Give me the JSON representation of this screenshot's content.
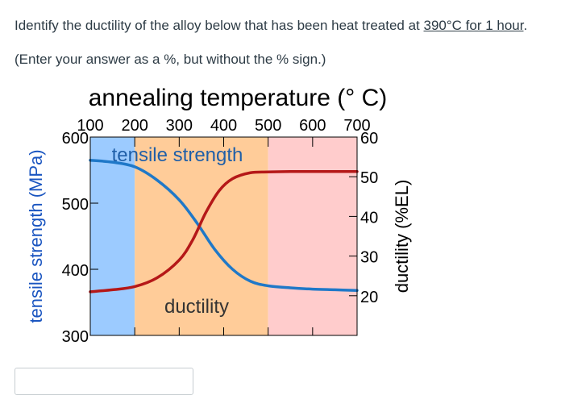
{
  "question": {
    "prefix": "Identify the ductility of the alloy below that has been heat treated at ",
    "link1": "390°C for 1 hour",
    "suffix": ".",
    "hint": "(Enter your answer as a %, but without the % sign.)"
  },
  "answer": {
    "value": "",
    "placeholder": ""
  },
  "chart_data": {
    "type": "line",
    "title": "annealing temperature (° C)",
    "x_ticks": [
      100,
      200,
      300,
      400,
      500,
      600,
      700
    ],
    "xlim": [
      100,
      700
    ],
    "ylabel_left": "tensile strength (MPa)",
    "yticks_left": [
      300,
      400,
      500,
      600
    ],
    "ylim_left": [
      300,
      600
    ],
    "ylabel_right": "ductility (%EL)",
    "yticks_right": [
      20,
      30,
      40,
      50,
      60
    ],
    "ylim_right": [
      10,
      60
    ],
    "regions": [
      {
        "from": 100,
        "to": 200,
        "color": "#9ccbff"
      },
      {
        "from": 200,
        "to": 500,
        "color": "#ffcc99"
      },
      {
        "from": 500,
        "to": 700,
        "color": "#ffcccc"
      }
    ],
    "series": [
      {
        "name": "tensile strength",
        "axis": "left",
        "color": "#1f78c8",
        "x": [
          100,
          150,
          200,
          250,
          300,
          340,
          380,
          420,
          460,
          500,
          550,
          600,
          650,
          700
        ],
        "y": [
          565,
          562,
          555,
          535,
          505,
          470,
          430,
          400,
          382,
          375,
          372,
          370,
          369,
          368
        ]
      },
      {
        "name": "ductility",
        "axis": "right",
        "color": "#b51818",
        "x": [
          100,
          150,
          200,
          250,
          300,
          330,
          360,
          390,
          420,
          460,
          500,
          550,
          600,
          650,
          700
        ],
        "y": [
          21,
          21.5,
          22.3,
          24.5,
          29,
          34,
          41,
          46.5,
          49.5,
          51,
          51.2,
          51.3,
          51.3,
          51.3,
          51.3
        ]
      }
    ]
  }
}
